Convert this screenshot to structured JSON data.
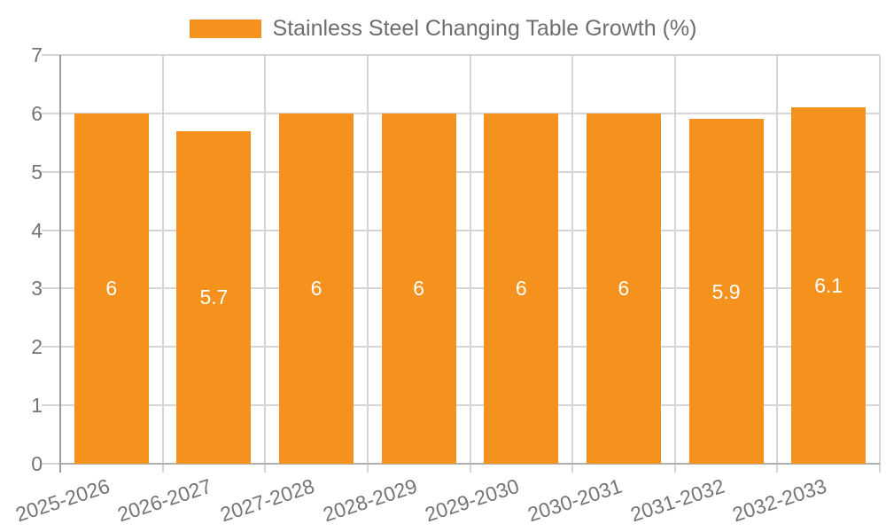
{
  "legend": {
    "label": "Stainless Steel Changing Table Growth (%)"
  },
  "chart_data": {
    "type": "bar",
    "title": "Stainless Steel Changing Table Growth (%)",
    "categories": [
      "2025-2026",
      "2026-2027",
      "2027-2028",
      "2028-2029",
      "2029-2030",
      "2030-2031",
      "2031-2032",
      "2032-2033"
    ],
    "values": [
      6,
      5.7,
      6,
      6,
      6,
      6,
      5.9,
      6.1
    ],
    "bar_labels": [
      "6",
      "5.7",
      "6",
      "6",
      "6",
      "6",
      "5.9",
      "6.1"
    ],
    "xlabel": "",
    "ylabel": "",
    "ylim": [
      0,
      7
    ],
    "yticks": [
      0,
      1,
      2,
      3,
      4,
      5,
      6,
      7
    ],
    "grid": true,
    "legend_position": "top",
    "colors": {
      "bar": "#F5921E",
      "grid_line": "#D6D6D6",
      "axis_line": "#9E9E9E",
      "baseline": "#B0B0B0",
      "axis_text": "#757575",
      "legend_text": "#6E6E6E",
      "value_label": "#FFFFFF"
    }
  }
}
